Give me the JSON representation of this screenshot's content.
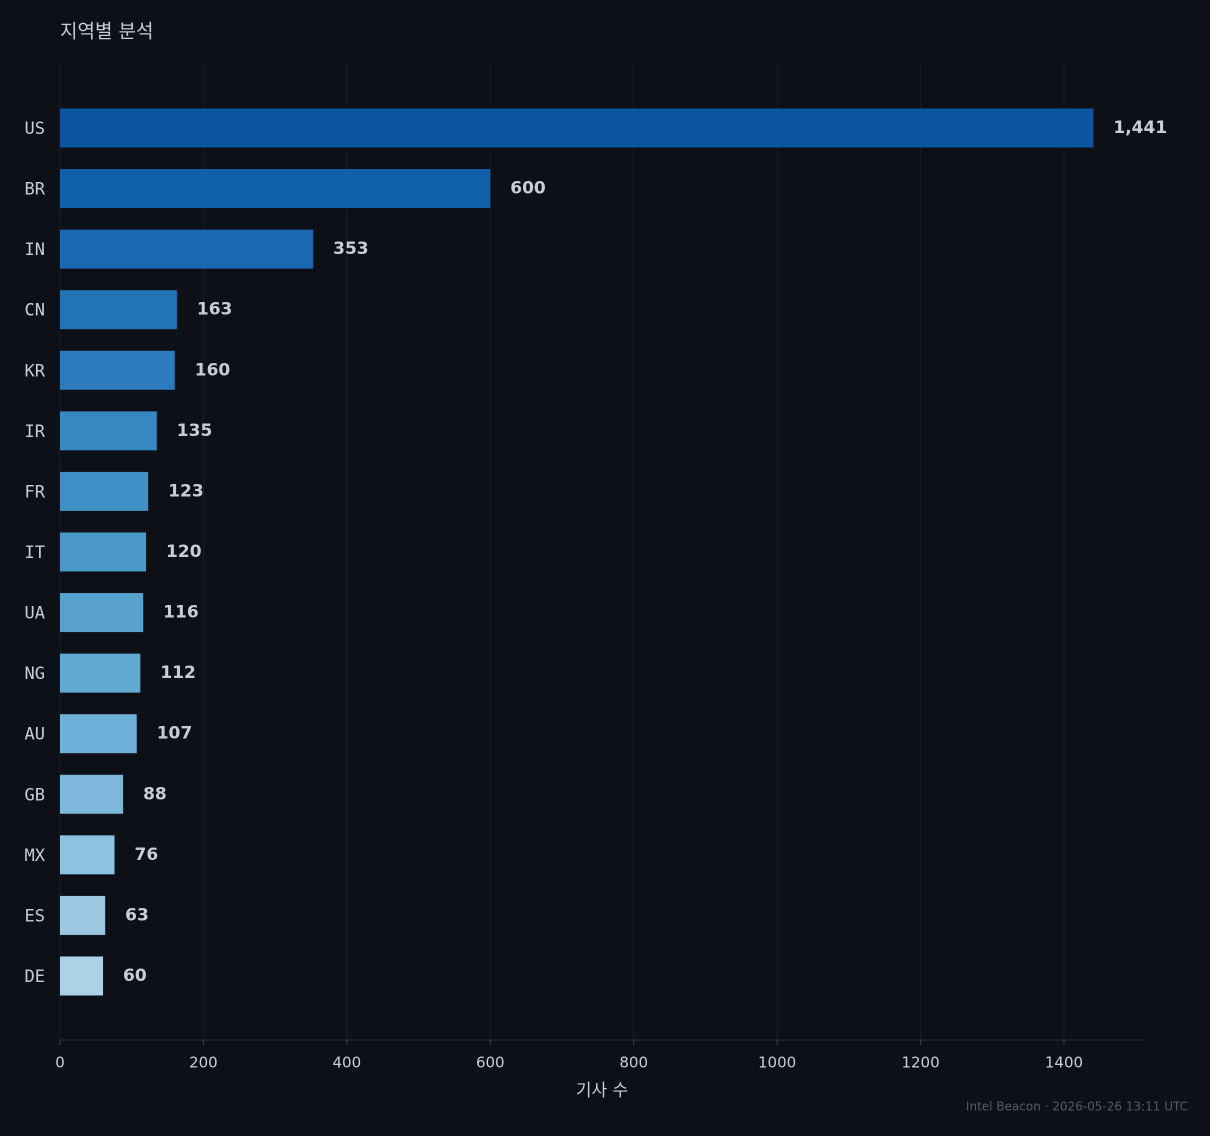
{
  "chart_data": {
    "type": "bar",
    "orientation": "horizontal",
    "title": "지역별 분석",
    "categories": [
      "US",
      "BR",
      "IN",
      "CN",
      "KR",
      "IR",
      "FR",
      "IT",
      "UA",
      "NG",
      "AU",
      "GB",
      "MX",
      "ES",
      "DE"
    ],
    "values": [
      1441,
      600,
      353,
      163,
      160,
      135,
      123,
      120,
      116,
      112,
      107,
      88,
      76,
      63,
      60
    ],
    "value_labels": [
      "1,441",
      "600",
      "353",
      "163",
      "160",
      "135",
      "123",
      "120",
      "116",
      "112",
      "107",
      "88",
      "76",
      "63",
      "60"
    ],
    "colors": [
      "#0b55a2",
      "#1060ac",
      "#1968b1",
      "#2373b7",
      "#2c7bbd",
      "#3787c0",
      "#408fc5",
      "#4b99c9",
      "#56a2cc",
      "#60a9d1",
      "#6db1d8",
      "#7db8dc",
      "#8cc3df",
      "#9bc8e0",
      "#abd2e6"
    ],
    "xlabel": "기사 수",
    "xlim": [
      0,
      1513
    ],
    "xticks": [
      0,
      200,
      400,
      600,
      800,
      1000,
      1200,
      1400
    ],
    "grid": true,
    "footer": "Intel Beacon · 2026-05-26 13:11 UTC"
  }
}
